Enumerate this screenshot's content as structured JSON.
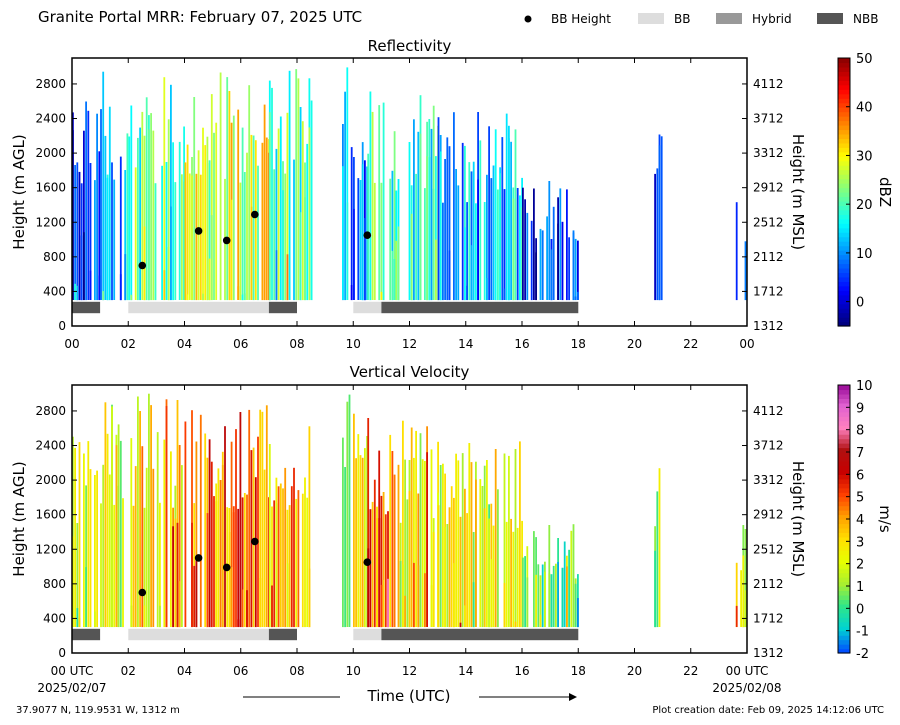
{
  "page": {
    "title": "Granite Portal MRR:  February 07, 2025 UTC",
    "footer_location": "37.9077 N, 119.9531 W, 1312 m",
    "footer_created": "Plot creation date: Feb 09, 2025 14:12:06 UTC"
  },
  "legend": {
    "items": [
      {
        "label": "BB Height",
        "kind": "marker",
        "color": "#000000"
      },
      {
        "label": "BB",
        "kind": "patch",
        "color": "#dddddd"
      },
      {
        "label": "Hybrid",
        "kind": "patch",
        "color": "#999999"
      },
      {
        "label": "NBB",
        "kind": "patch",
        "color": "#555555"
      }
    ]
  },
  "axes": {
    "x_label": "Time (UTC)",
    "x_ticks": [
      0,
      2,
      4,
      6,
      8,
      10,
      12,
      14,
      16,
      18,
      20,
      22,
      24
    ],
    "x_tick_labels_top": [
      "00",
      "02",
      "04",
      "06",
      "08",
      "10",
      "12",
      "14",
      "16",
      "18",
      "20",
      "22",
      "00"
    ],
    "x_tick_labels_bottom": [
      "00 UTC",
      "02",
      "04",
      "06",
      "08",
      "10",
      "12",
      "14",
      "16",
      "18",
      "20",
      "22",
      "00 UTC"
    ],
    "start_date": "2025/02/07",
    "end_date": "2025/02/08",
    "y_left_label": "Height (m AGL)",
    "y_right_label": "Height (m MSL)",
    "y_left_ticks": [
      0,
      400,
      800,
      1200,
      1600,
      2000,
      2400,
      2800
    ],
    "y_right_ticks": [
      1312,
      1712,
      2112,
      2512,
      2912,
      3312,
      3712,
      4112
    ],
    "ylim": [
      0,
      3100
    ],
    "xlim": [
      0,
      24
    ]
  },
  "chart_data": [
    {
      "type": "heatmap",
      "title": "Reflectivity",
      "variable": "reflectivity",
      "colorbar": {
        "label": "dBZ",
        "range": [
          -5,
          50
        ],
        "ticks": [
          0,
          10,
          20,
          30,
          40,
          50
        ],
        "colors": [
          "#00007f",
          "#0000ff",
          "#0080ff",
          "#00ffff",
          "#80ff80",
          "#ffff00",
          "#ff8000",
          "#ff0000",
          "#7f0000"
        ]
      },
      "echo_segments": [
        {
          "start": 0.0,
          "end": 1.0,
          "top": 2600,
          "dbz": 6
        },
        {
          "start": 1.0,
          "end": 2.0,
          "top": 3000,
          "dbz": 12
        },
        {
          "start": 2.0,
          "end": 4.0,
          "top": 3000,
          "dbz": 20
        },
        {
          "start": 4.0,
          "end": 7.0,
          "top": 3000,
          "dbz": 27
        },
        {
          "start": 7.0,
          "end": 8.5,
          "top": 3000,
          "dbz": 20
        },
        {
          "start": 9.6,
          "end": 10.5,
          "top": 3000,
          "dbz": 9
        },
        {
          "start": 10.5,
          "end": 11.5,
          "top": 2900,
          "dbz": 19
        },
        {
          "start": 11.5,
          "end": 13.0,
          "top": 2700,
          "dbz": 18
        },
        {
          "start": 13.0,
          "end": 16.0,
          "top": 2500,
          "dbz": 12
        },
        {
          "start": 16.0,
          "end": 18.0,
          "top": 1700,
          "dbz": 4
        },
        {
          "start": 20.7,
          "end": 21.0,
          "top": 2300,
          "dbz": 4
        },
        {
          "start": 23.6,
          "end": 24.0,
          "top": 1700,
          "dbz": 5
        }
      ],
      "bb_height_points": [
        {
          "time": 2.5,
          "height": 700
        },
        {
          "time": 4.5,
          "height": 1100
        },
        {
          "time": 5.5,
          "height": 990
        },
        {
          "time": 6.5,
          "height": 1290
        },
        {
          "time": 10.5,
          "height": 1050
        }
      ]
    },
    {
      "type": "heatmap",
      "title": "Vertical Velocity",
      "variable": "vertical_velocity",
      "colorbar": {
        "label": "m/s",
        "range": [
          -2,
          10
        ],
        "ticks": [
          -2,
          -1,
          0,
          1,
          2,
          3,
          4,
          5,
          6,
          7,
          8,
          9,
          10
        ],
        "colors": [
          "#0050ff",
          "#00d2d2",
          "#2ee68a",
          "#a8f030",
          "#e6ff00",
          "#ffe000",
          "#ffa000",
          "#ff4000",
          "#c80000",
          "#b01010",
          "#ff80c0",
          "#e060d0",
          "#900090"
        ]
      },
      "echo_segments": [
        {
          "start": 0.0,
          "end": 1.0,
          "top": 2600,
          "w": 1.5
        },
        {
          "start": 1.0,
          "end": 2.0,
          "top": 3000,
          "w": 2.0
        },
        {
          "start": 2.0,
          "end": 4.0,
          "top": 3000,
          "w": 3.0
        },
        {
          "start": 4.0,
          "end": 7.0,
          "top": 3000,
          "w": 4.5
        },
        {
          "start": 7.0,
          "end": 8.5,
          "top": 3000,
          "w": 3.5
        },
        {
          "start": 9.6,
          "end": 10.5,
          "top": 3000,
          "w": 2.0
        },
        {
          "start": 10.5,
          "end": 11.5,
          "top": 2900,
          "w": 4.0
        },
        {
          "start": 11.5,
          "end": 13.0,
          "top": 2700,
          "w": 2.5
        },
        {
          "start": 13.0,
          "end": 16.0,
          "top": 2500,
          "w": 2.0
        },
        {
          "start": 16.0,
          "end": 18.0,
          "top": 1500,
          "w": 1.0
        },
        {
          "start": 20.7,
          "end": 21.0,
          "top": 2300,
          "w": 2.0
        },
        {
          "start": 23.6,
          "end": 24.0,
          "top": 1700,
          "w": 2.5
        }
      ],
      "bb_height_points": [
        {
          "time": 2.5,
          "height": 700
        },
        {
          "time": 4.5,
          "height": 1100
        },
        {
          "time": 5.5,
          "height": 990
        },
        {
          "time": 6.5,
          "height": 1290
        },
        {
          "time": 10.5,
          "height": 1050
        }
      ]
    }
  ],
  "classification_bars": [
    {
      "start": 0.0,
      "end": 1.0,
      "type": "NBB"
    },
    {
      "start": 2.0,
      "end": 7.0,
      "type": "BB"
    },
    {
      "start": 7.0,
      "end": 8.0,
      "type": "NBB"
    },
    {
      "start": 10.0,
      "end": 11.0,
      "type": "BB"
    },
    {
      "start": 11.0,
      "end": 18.0,
      "type": "NBB"
    }
  ]
}
